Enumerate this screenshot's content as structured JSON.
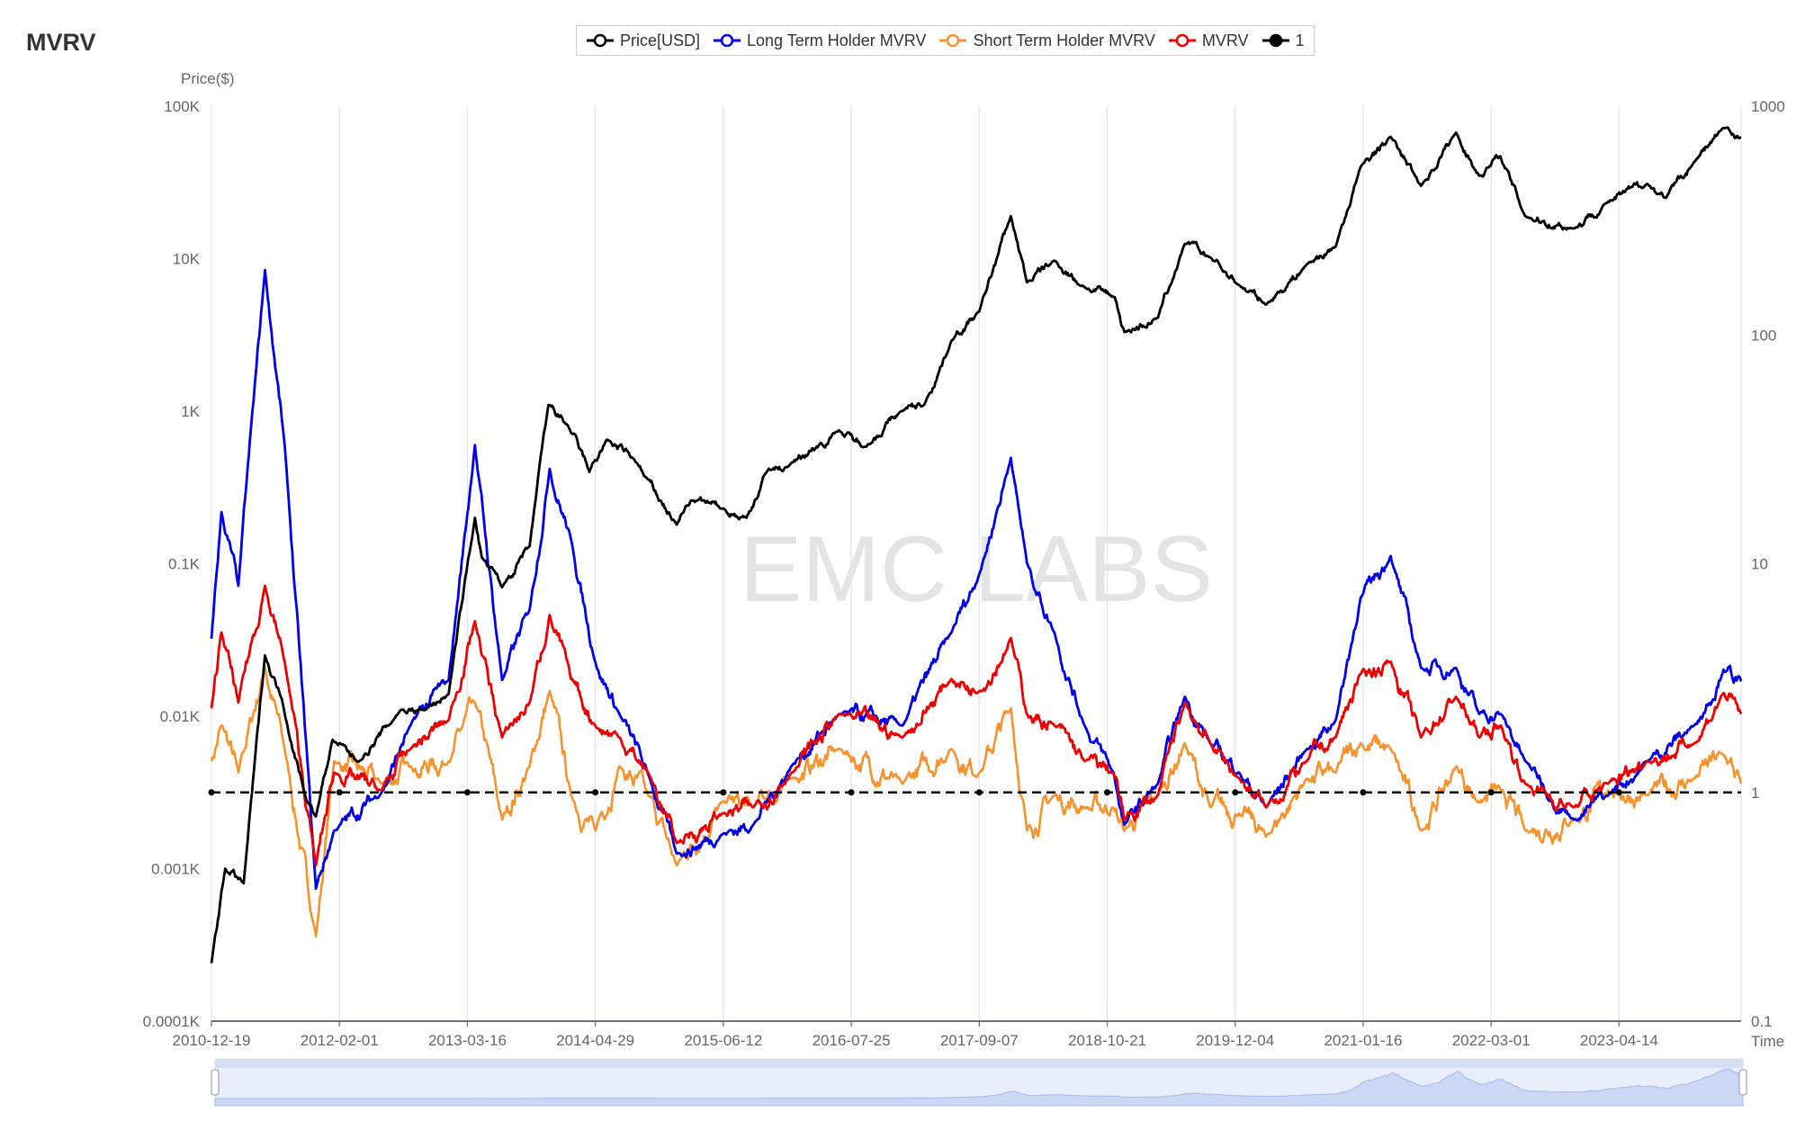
{
  "title": "MVRV",
  "legend": [
    {
      "label": "Price[USD]",
      "color": "#000000",
      "marker": "hollow-circle"
    },
    {
      "label": "Long Term Holder MVRV",
      "color": "#0000ee",
      "marker": "hollow-circle"
    },
    {
      "label": "Short Term Holder MVRV",
      "color": "#f7932f",
      "marker": "hollow-circle"
    },
    {
      "label": "MVRV",
      "color": "#ee0000",
      "marker": "hollow-circle"
    },
    {
      "label": "1",
      "color": "#000000",
      "marker": "filled-circle-dashed"
    }
  ],
  "watermark": "EMC LABS",
  "chart_data": {
    "type": "line",
    "title": "MVRV",
    "ylabel_left": "Price($)",
    "xlabel": "Time",
    "x_range": [
      "2010-12-19",
      "2024-05-08"
    ],
    "x_ticks": [
      "2010-12-19",
      "2012-02-01",
      "2013-03-16",
      "2014-04-29",
      "2015-06-12",
      "2016-07-25",
      "2017-09-07",
      "2018-10-21",
      "2019-12-04",
      "2021-01-16",
      "2022-03-01",
      "2023-04-14"
    ],
    "y_left": {
      "scale": "log",
      "range": [
        0.1,
        100000
      ],
      "tick_labels": [
        "100K",
        "10K",
        "1K",
        "0.1K",
        "0.01K",
        "0.001K",
        "0.0001K"
      ]
    },
    "y_right": {
      "scale": "log",
      "range": [
        0.1,
        1000
      ],
      "tick_labels": [
        "1000",
        "100",
        "10",
        "1",
        "0.1"
      ]
    },
    "grid": "vertical",
    "legend_position": "top",
    "price_series": {
      "name": "Price[USD]",
      "axis": "left",
      "dates": [
        "2010-12-19",
        "2011-02-01",
        "2011-04-01",
        "2011-06-08",
        "2011-08-01",
        "2011-10-15",
        "2011-11-18",
        "2012-01-10",
        "2012-04-01",
        "2012-08-15",
        "2012-11-01",
        "2013-01-15",
        "2013-04-09",
        "2013-05-01",
        "2013-07-05",
        "2013-10-01",
        "2013-11-30",
        "2014-02-01",
        "2014-04-10",
        "2014-06-05",
        "2014-09-01",
        "2014-10-01",
        "2015-01-14",
        "2015-03-01",
        "2015-06-12",
        "2015-08-25",
        "2015-11-04",
        "2016-01-01",
        "2016-06-16",
        "2016-09-01",
        "2017-01-01",
        "2017-03-15",
        "2017-06-10",
        "2017-09-07",
        "2017-12-17",
        "2018-02-06",
        "2018-05-05",
        "2018-08-10",
        "2018-11-14",
        "2018-12-15",
        "2019-04-01",
        "2019-06-26",
        "2019-09-15",
        "2019-12-17",
        "2020-03-12",
        "2020-07-20",
        "2020-10-20",
        "2021-01-08",
        "2021-04-14",
        "2021-07-20",
        "2021-11-09",
        "2022-01-22",
        "2022-03-30",
        "2022-06-18",
        "2022-11-21",
        "2023-03-01",
        "2023-07-13",
        "2023-09-11",
        "2023-12-10",
        "2024-03-13",
        "2024-05-08"
      ],
      "values": [
        0.24,
        1.0,
        0.8,
        25,
        13,
        3,
        2.2,
        7,
        5,
        11,
        11,
        14,
        200,
        110,
        70,
        130,
        1100,
        800,
        400,
        650,
        480,
        380,
        180,
        260,
        230,
        200,
        420,
        430,
        750,
        580,
        1000,
        1100,
        2900,
        4500,
        19000,
        7000,
        9700,
        6500,
        5600,
        3300,
        4100,
        12500,
        10200,
        6700,
        5000,
        9200,
        12000,
        40000,
        63000,
        30000,
        67000,
        35000,
        47000,
        19000,
        15800,
        23000,
        31000,
        25000,
        43000,
        72000,
        62000
      ]
    },
    "mvrv_dates": [
      "2010-12-19",
      "2011-01-20",
      "2011-03-15",
      "2011-06-08",
      "2011-08-10",
      "2011-11-18",
      "2012-01-15",
      "2012-06-15",
      "2012-09-15",
      "2013-01-15",
      "2013-04-09",
      "2013-07-05",
      "2013-10-01",
      "2013-12-04",
      "2014-02-10",
      "2014-04-29",
      "2014-07-15",
      "2014-10-15",
      "2015-01-14",
      "2015-06-12",
      "2015-09-15",
      "2016-01-15",
      "2016-06-16",
      "2017-01-05",
      "2017-06-10",
      "2017-09-07",
      "2017-12-17",
      "2018-02-06",
      "2018-05-05",
      "2018-08-10",
      "2018-11-10",
      "2018-12-15",
      "2019-04-01",
      "2019-06-26",
      "2019-09-15",
      "2019-12-17",
      "2020-03-12",
      "2020-07-20",
      "2020-10-20",
      "2021-01-08",
      "2021-04-14",
      "2021-07-20",
      "2021-11-09",
      "2022-01-22",
      "2022-04-01",
      "2022-06-18",
      "2022-11-21",
      "2023-03-10",
      "2023-07-13",
      "2023-12-10",
      "2024-03-13",
      "2024-05-08"
    ],
    "series": [
      {
        "name": "Long Term Holder MVRV",
        "axis": "right",
        "color": "#0000ee",
        "values": [
          4.7,
          16.8,
          8,
          192,
          33,
          0.38,
          0.68,
          1.0,
          1.96,
          3.1,
          33,
          3.1,
          6.3,
          26,
          12.8,
          3.7,
          2.2,
          1.2,
          0.54,
          0.66,
          0.72,
          1.3,
          2.2,
          1.96,
          5,
          9,
          29,
          10.1,
          5,
          1.96,
          1.22,
          0.72,
          1.09,
          2.62,
          1.64,
          1.22,
          0.86,
          1.55,
          2.07,
          7.1,
          10.8,
          3.5,
          3.5,
          2.2,
          2.2,
          1.37,
          0.76,
          0.97,
          1.37,
          1.96,
          3.44,
          3.06
        ]
      },
      {
        "name": "Short Term Holder MVRV",
        "axis": "right",
        "color": "#f7932f",
        "values": [
          1.37,
          1.96,
          1.22,
          3.5,
          1.55,
          0.235,
          1.37,
          1.09,
          1.3,
          1.37,
          2.47,
          0.76,
          1.3,
          2.78,
          0.97,
          0.68,
          1.3,
          0.97,
          0.48,
          0.91,
          0.86,
          1.15,
          1.55,
          1.09,
          1.55,
          1.22,
          2.33,
          0.68,
          0.97,
          0.86,
          0.86,
          0.68,
          0.97,
          1.64,
          0.86,
          0.81,
          0.64,
          1.15,
          1.22,
          1.64,
          1.55,
          0.68,
          1.3,
          0.91,
          1.02,
          0.68,
          0.76,
          1.02,
          0.97,
          1.15,
          1.46,
          1.09
        ]
      },
      {
        "name": "MVRV",
        "axis": "right",
        "color": "#ee0000",
        "values": [
          2.33,
          5,
          2.47,
          8,
          3.73,
          0.48,
          1.22,
          1.02,
          1.55,
          2.07,
          5.6,
          1.74,
          2.47,
          5.96,
          3.13,
          1.96,
          1.74,
          1.22,
          0.6,
          0.81,
          0.86,
          1.22,
          2.2,
          1.74,
          3.13,
          2.78,
          4.73,
          2.2,
          1.96,
          1.37,
          1.22,
          0.76,
          0.97,
          2.47,
          1.64,
          1.15,
          0.86,
          1.37,
          1.74,
          3.3,
          3.73,
          1.74,
          2.62,
          1.74,
          1.96,
          1.09,
          0.86,
          1.09,
          1.37,
          1.64,
          2.72,
          2.2
        ]
      },
      {
        "name": "1",
        "axis": "right",
        "color": "#000000",
        "constant": 1,
        "style": "dashed"
      }
    ]
  }
}
